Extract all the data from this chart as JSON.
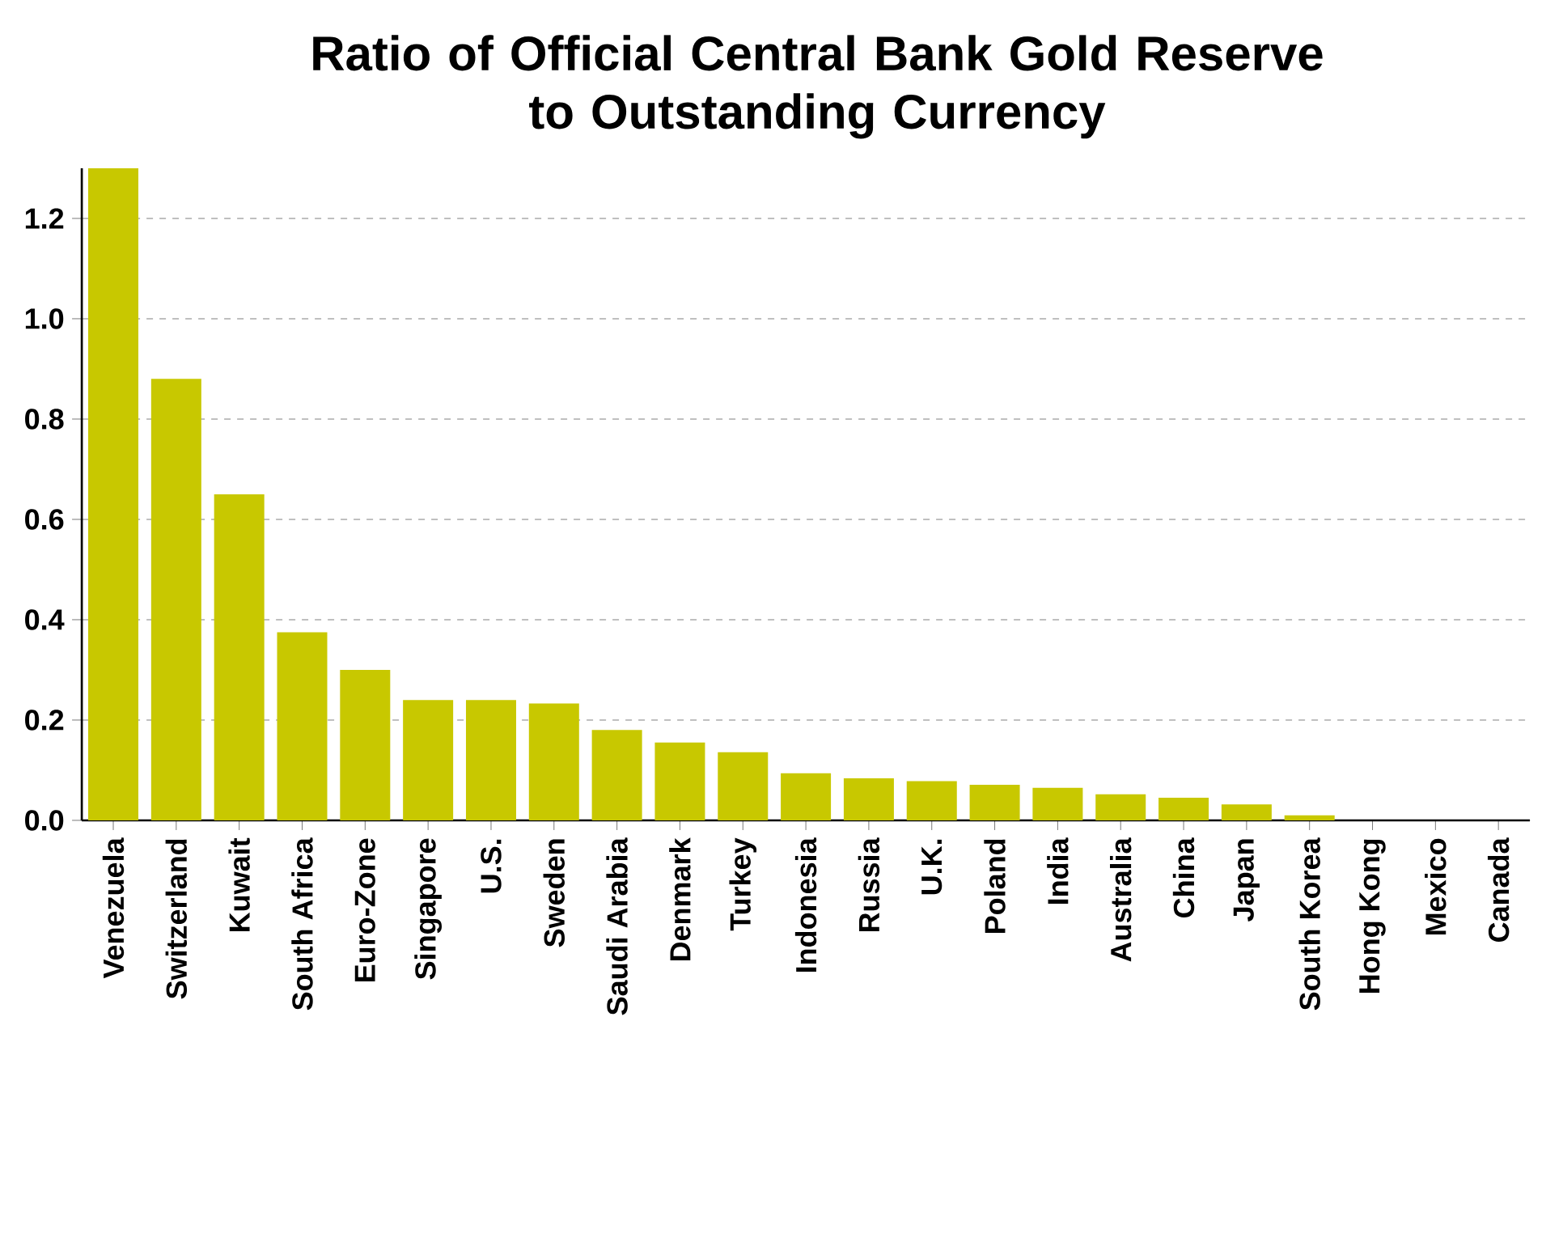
{
  "chart_data": {
    "type": "bar",
    "title": "Ratio of Official Central Bank Gold Reserve\nto Outstanding Currency",
    "categories": [
      "Venezuela",
      "Switzerland",
      "Kuwait",
      "South Africa",
      "Euro-Zone",
      "Singapore",
      "U.S.",
      "Sweden",
      "Saudi Arabia",
      "Denmark",
      "Turkey",
      "Indonesia",
      "Russia",
      "U.K.",
      "Poland",
      "India",
      "Australia",
      "China",
      "Japan",
      "South Korea",
      "Hong Kong",
      "Mexico",
      "Canada"
    ],
    "values": [
      1.3,
      0.88,
      0.65,
      0.375,
      0.3,
      0.24,
      0.24,
      0.233,
      0.18,
      0.155,
      0.136,
      0.094,
      0.084,
      0.078,
      0.071,
      0.065,
      0.052,
      0.045,
      0.032,
      0.01,
      0,
      0,
      0
    ],
    "color": "#c8c800",
    "ylim": [
      0,
      1.3
    ],
    "yticks": [
      {
        "value": 0,
        "label": "0.0"
      },
      {
        "value": 0.2,
        "label": "0.2"
      },
      {
        "value": 0.4,
        "label": "0.4"
      },
      {
        "value": 0.6,
        "label": "0.6"
      },
      {
        "value": 0.8,
        "label": "0.8"
      },
      {
        "value": 1.0,
        "label": "1.0"
      },
      {
        "value": 1.2,
        "label": "1.2"
      }
    ],
    "grid": "y"
  }
}
